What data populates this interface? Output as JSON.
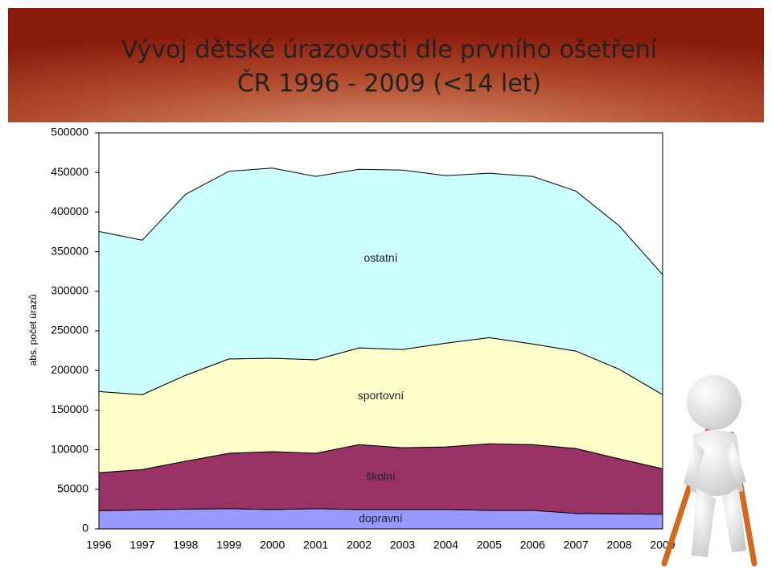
{
  "chart_data": {
    "type": "stacked-area",
    "title": "Vývoj dětské úrazovosti dle prvního ošetření",
    "subtitle": "ČR 1996 - 2009  (<14 let)",
    "y_label": "abs. počet úrazů",
    "categories": [
      "1996",
      "1997",
      "1998",
      "1999",
      "2000",
      "2001",
      "2002",
      "2003",
      "2004",
      "2005",
      "2006",
      "2007",
      "2008",
      "2009"
    ],
    "series": [
      {
        "name": "dopravní",
        "color": "#9999ff",
        "values": [
          23000,
          24000,
          25000,
          25500,
          24500,
          25500,
          24500,
          24500,
          24500,
          23500,
          23500,
          19500,
          19000,
          18500
        ]
      },
      {
        "name": "školní",
        "color": "#993366",
        "values": [
          48000,
          51000,
          60500,
          70000,
          73000,
          70000,
          82000,
          78000,
          79000,
          84000,
          83000,
          82000,
          69500,
          57500
        ]
      },
      {
        "name": "sportovní",
        "color": "#ffffcc",
        "values": [
          102500,
          94500,
          108500,
          119000,
          118000,
          118000,
          122000,
          124000,
          131000,
          134000,
          127000,
          123000,
          113000,
          93500
        ]
      },
      {
        "name": "ostatní",
        "color": "#ccffff",
        "values": [
          202000,
          195000,
          228500,
          237000,
          240000,
          231500,
          225500,
          226500,
          211500,
          207500,
          211500,
          202000,
          181000,
          151500
        ]
      }
    ],
    "ylim": [
      0,
      500000
    ],
    "yticks": [
      0,
      50000,
      100000,
      150000,
      200000,
      250000,
      300000,
      350000,
      400000,
      450000,
      500000
    ]
  }
}
